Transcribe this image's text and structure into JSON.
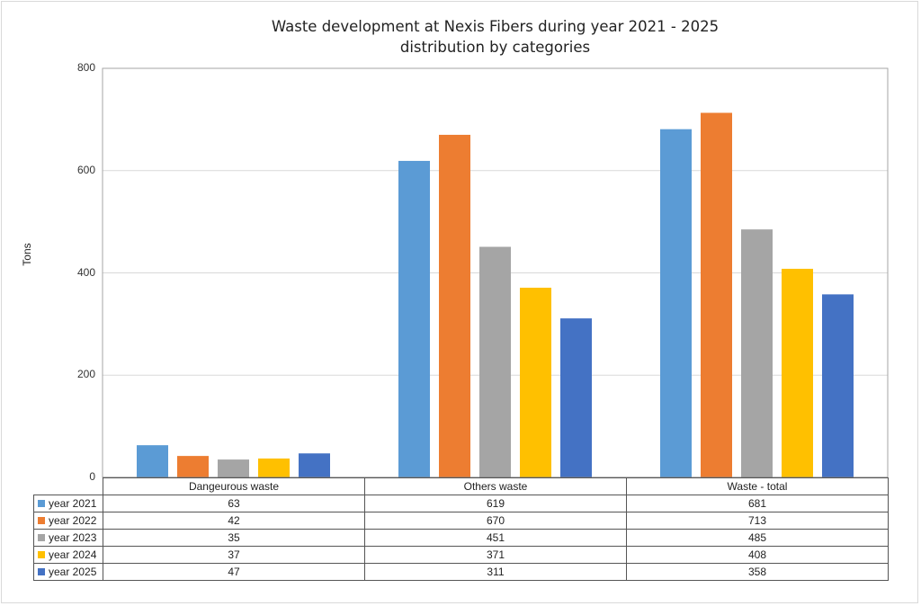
{
  "chart_data": {
    "type": "bar",
    "title": "Waste development at Nexis Fibers during year 2021 - 2025",
    "subtitle": "distribution by categories",
    "xlabel": "",
    "ylabel": "Tons",
    "ylim": [
      0,
      800
    ],
    "yticks": [
      "0",
      "200",
      "400",
      "600",
      "800"
    ],
    "grid": true,
    "legend": "data-table",
    "categories": [
      "Dangeurous waste",
      "Others waste",
      "Waste - total"
    ],
    "series": [
      {
        "name": "year 2021",
        "color": "#5B9BD5",
        "values": [
          63,
          619,
          681
        ]
      },
      {
        "name": "year 2022",
        "color": "#ED7D31",
        "values": [
          42,
          670,
          713
        ]
      },
      {
        "name": "year 2023",
        "color": "#A5A5A5",
        "values": [
          35,
          451,
          485
        ]
      },
      {
        "name": "year 2024",
        "color": "#FFC000",
        "values": [
          37,
          371,
          408
        ]
      },
      {
        "name": "year 2025",
        "color": "#4472C4",
        "values": [
          47,
          311,
          358
        ]
      }
    ]
  }
}
